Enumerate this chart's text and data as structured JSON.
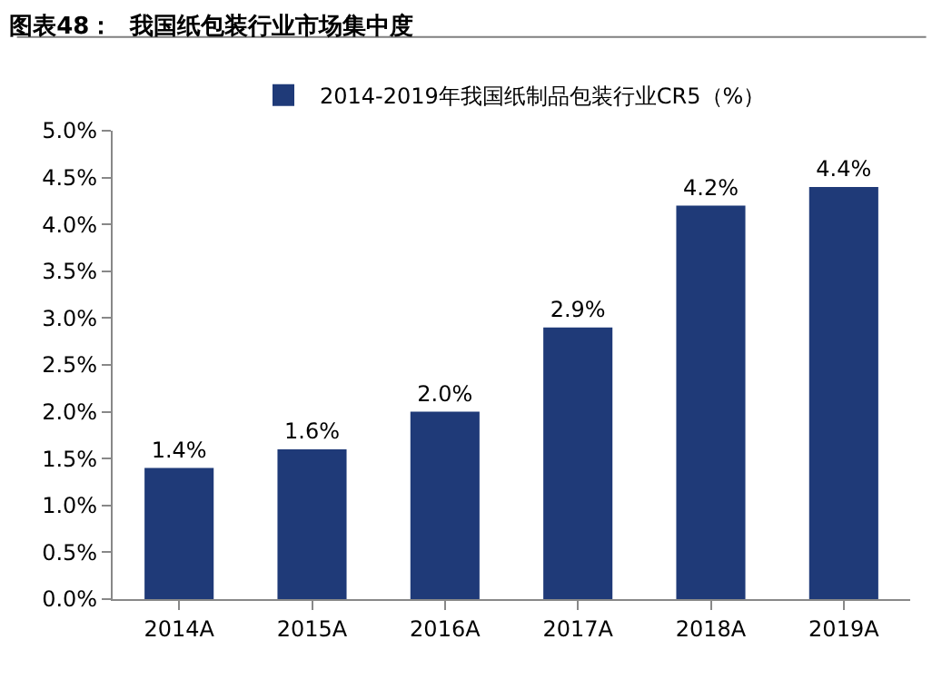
{
  "chart_data": {
    "type": "bar",
    "title": "图表48：  我国纸包装行业市场集中度",
    "categories": [
      "2014A",
      "2015A",
      "2016A",
      "2017A",
      "2018A",
      "2019A"
    ],
    "series": [
      {
        "name": "2014-2019年我国纸制品包装行业CR5（%）",
        "color": "#1f3a78",
        "values": [
          1.4,
          1.6,
          2.0,
          2.9,
          4.2,
          4.4
        ],
        "value_labels": [
          "1.4%",
          "1.6%",
          "2.0%",
          "2.9%",
          "4.2%",
          "4.4%"
        ]
      }
    ],
    "ylim": [
      0,
      5
    ],
    "yticks": [
      {
        "value": 0,
        "label": "0.0%"
      },
      {
        "value": 0.5,
        "label": "0.5%"
      },
      {
        "value": 1,
        "label": "1.0%"
      },
      {
        "value": 1.5,
        "label": "1.5%"
      },
      {
        "value": 2,
        "label": "2.0%"
      },
      {
        "value": 2.5,
        "label": "2.5%"
      },
      {
        "value": 3,
        "label": "3.0%"
      },
      {
        "value": 3.5,
        "label": "3.5%"
      },
      {
        "value": 4,
        "label": "4.0%"
      },
      {
        "value": 4.5,
        "label": "4.5%"
      },
      {
        "value": 5,
        "label": "5.0%"
      }
    ],
    "grid": false,
    "legend": "top"
  }
}
